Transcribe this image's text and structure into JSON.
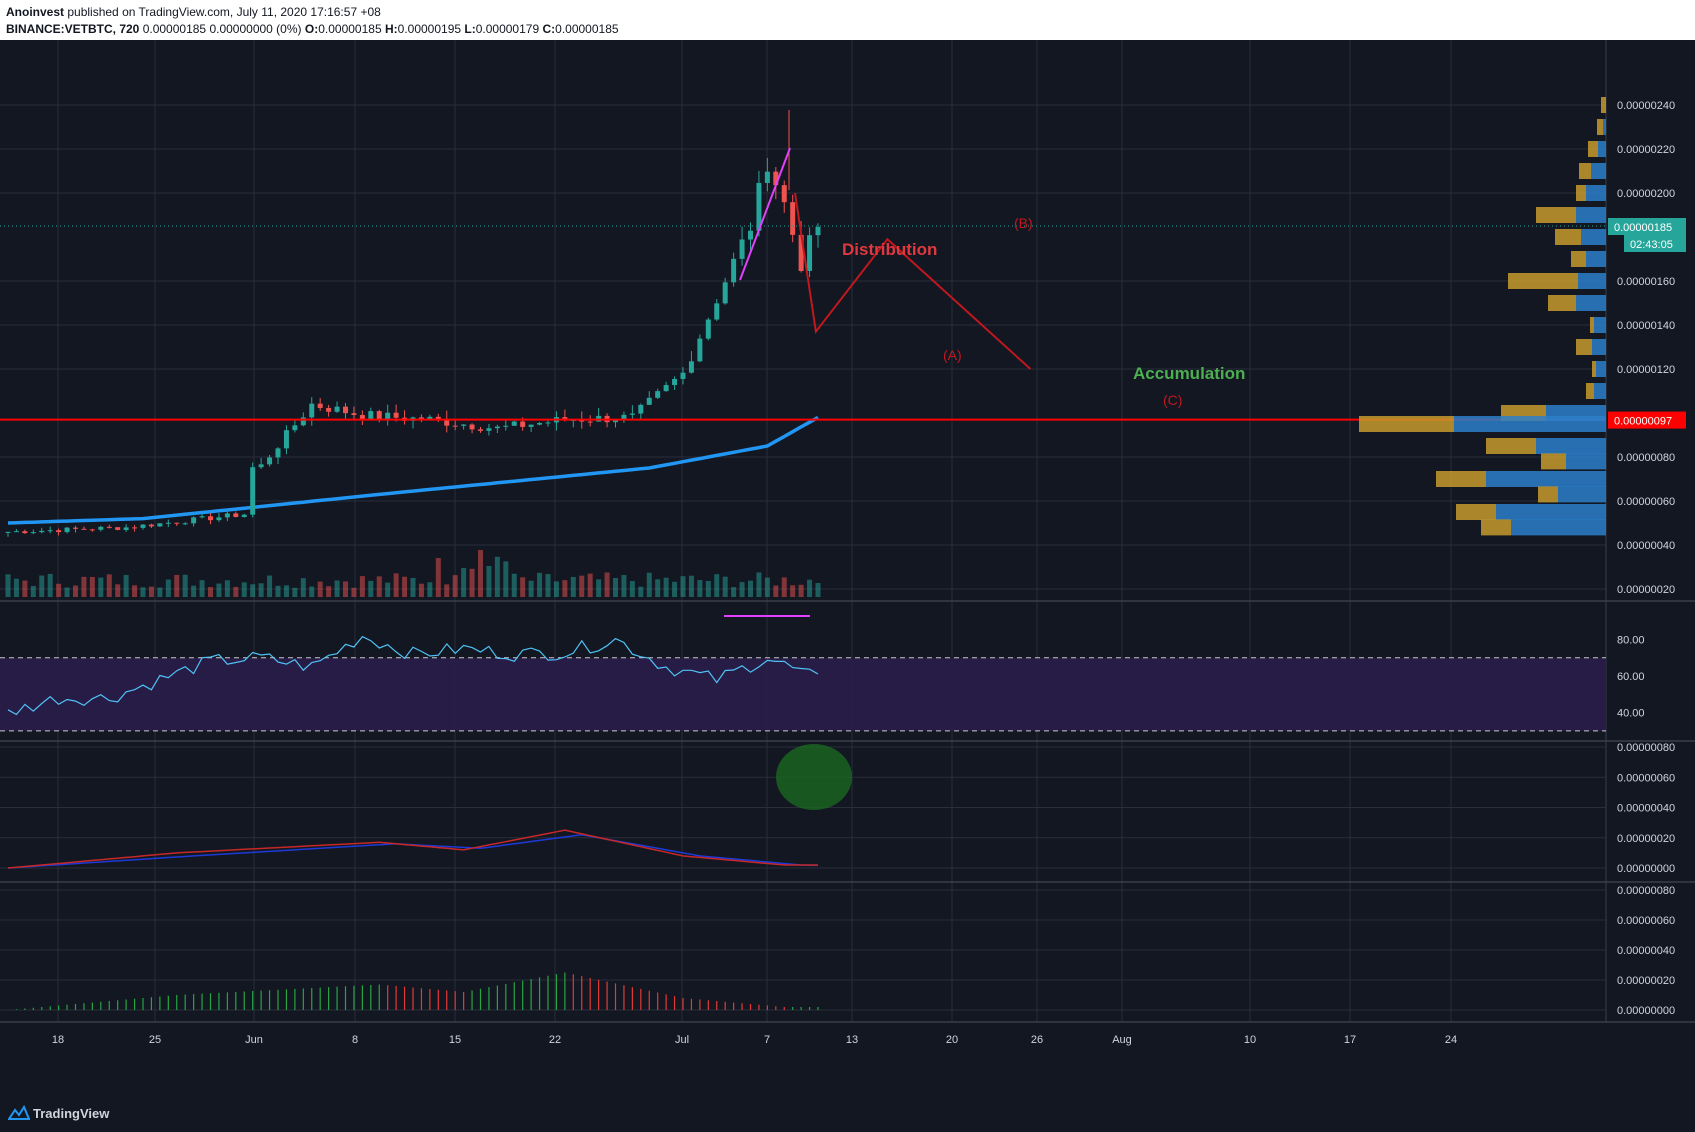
{
  "header": {
    "author": "Anoinvest",
    "published": "published on TradingView.com, July 11, 2020 17:16:57 +08",
    "symbol": "BINANCE:VETBTC, 720",
    "price": "0.00000185",
    "change": "0.00000000 (0%)",
    "o_label": "O:",
    "o_value": "0.00000185",
    "h_label": "H:",
    "h_value": "0.00000195",
    "l_label": "L:",
    "l_value": "0.00000179",
    "c_label": "C:",
    "c_value": "0.00000185"
  },
  "footer": {
    "brand": "TradingView"
  },
  "colors": {
    "background": "#131722",
    "grid": "#2a2e39",
    "up": "#26a69a",
    "down": "#ef5350",
    "ma": "#2196f3",
    "support": "#ff0000",
    "rsi": "#4fc3f7",
    "rsi_band": "#2a1d4a",
    "macd": "#c62828",
    "signal": "#1e3ad6",
    "annotation": "#c0181e",
    "accumulation": "#4caf50",
    "peak_line": "#e040fb",
    "vp_up": "#2b7fc9",
    "vp_down": "#c79a2c"
  },
  "chart_data": [
    {
      "type": "candlestick",
      "panel": "price",
      "symbol": "BINANCE:VETBTC",
      "interval": "720",
      "ylim": [
        1e-07,
        2.5e-06
      ],
      "yticks": [
        "0.00000240",
        "0.00000220",
        "0.00000200",
        "0.00000160",
        "0.00000140",
        "0.00000120",
        "0.00000080",
        "0.00000060",
        "0.00000040",
        "0.00000020"
      ],
      "last_price_label": "0.00000185",
      "countdown_label": "02:43:05",
      "support_level": 9.7e-07,
      "support_label": "0.00000097",
      "xticks": [
        "18",
        "25",
        "Jun",
        "8",
        "15",
        "22",
        "Jul",
        "7",
        "13",
        "20",
        "26",
        "Aug",
        "10",
        "17",
        "24"
      ],
      "ohlc_anchors": [
        {
          "date": "May 14",
          "close": 4.6e-07
        },
        {
          "date": "May 21",
          "close": 4.8e-07
        },
        {
          "date": "May 28",
          "close": 5.4e-07
        },
        {
          "date": "Jun 1",
          "close": 6.4e-07
        },
        {
          "date": "Jun 5",
          "close": 7.1e-07
        },
        {
          "date": "Jun 8",
          "close": 7.6e-07
        },
        {
          "date": "Jun 11",
          "close": 1.04e-06
        },
        {
          "date": "Jun 14",
          "close": 9.9e-07
        },
        {
          "date": "Jun 18",
          "close": 9.7e-07
        },
        {
          "date": "Jun 22",
          "close": 9.3e-07
        },
        {
          "date": "Jun 26",
          "close": 9.7e-07
        },
        {
          "date": "Jun 30",
          "close": 9.8e-07
        },
        {
          "date": "Jul 3",
          "close": 1.18e-06
        },
        {
          "date": "Jul 5",
          "close": 1.52e-06
        },
        {
          "date": "Jul 7",
          "close": 1.85e-06
        },
        {
          "date": "Jul 8",
          "close": 2.15e-06
        },
        {
          "date": "Jul 9",
          "close": 1.95e-06
        },
        {
          "date": "Jul 10",
          "close": 1.68e-06
        },
        {
          "date": "Jul 11",
          "close": 1.85e-06
        }
      ],
      "ma_anchors": [
        {
          "date": "May 14",
          "value": 5e-07
        },
        {
          "date": "Jun 1",
          "value": 5.2e-07
        },
        {
          "date": "Jun 15",
          "value": 6.3e-07
        },
        {
          "date": "Jul 1",
          "value": 7.5e-07
        },
        {
          "date": "Jul 8",
          "value": 8.5e-07
        },
        {
          "date": "Jul 11",
          "value": 9.8e-07
        }
      ],
      "volume_anchors": [
        {
          "date": "Jun 11",
          "value": 0.55
        },
        {
          "date": "Jul 5",
          "value": 1.0
        },
        {
          "date": "Jul 8",
          "value": 0.6
        },
        {
          "date": "Jul 9",
          "value": 0.65
        }
      ],
      "annotations": {
        "distribution": "Distribution",
        "a": "(A)",
        "b": "(B)",
        "c": "(C)",
        "accumulation": "Accumulation"
      },
      "projection_path": [
        {
          "date": "Jul 8",
          "value": 2e-06
        },
        {
          "date": "Jul 20",
          "value": 1.37e-06
        },
        {
          "date": "Jul 25",
          "value": 1.79e-06
        },
        {
          "date": "Aug 4",
          "value": 1.2e-06
        }
      ]
    },
    {
      "type": "line",
      "panel": "rsi",
      "ylim": [
        25,
        100
      ],
      "yticks": [
        "80.00",
        "60.00",
        "40.00"
      ],
      "overbought": 70,
      "oversold": 30
    },
    {
      "type": "line",
      "panel": "macd",
      "yticks": [
        "0.00000080",
        "0.00000060",
        "0.00000040",
        "0.00000020",
        "0.00000000"
      ]
    },
    {
      "type": "bar",
      "panel": "histogram",
      "yticks": [
        "0.00000080",
        "0.00000060",
        "0.00000040",
        "0.00000020",
        "0.00000000"
      ]
    }
  ]
}
